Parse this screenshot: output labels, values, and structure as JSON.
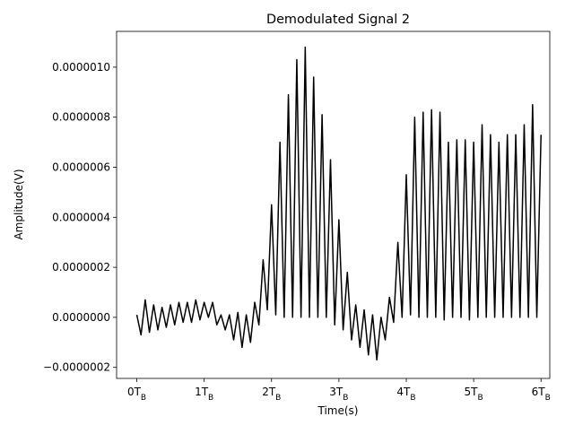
{
  "chart_data": {
    "type": "line",
    "title": "Demodulated Signal 2",
    "x_label": "Time(s)",
    "y_label": "Amplitude(V)",
    "xlim": [
      -0.3,
      6.13
    ],
    "ylim": [
      -2.44e-07,
      1.143e-06
    ],
    "xticks": [
      {
        "value": 0,
        "label": "0T_B"
      },
      {
        "value": 1,
        "label": "1T_B"
      },
      {
        "value": 2,
        "label": "2T_B"
      },
      {
        "value": 3,
        "label": "3T_B"
      },
      {
        "value": 4,
        "label": "4T_B"
      },
      {
        "value": 5,
        "label": "5T_B"
      },
      {
        "value": 6,
        "label": "6T_B"
      }
    ],
    "yticks": [
      {
        "value": -2e-07,
        "label": "−0.0000002"
      },
      {
        "value": 0,
        "label": "0.0000000"
      },
      {
        "value": 2e-07,
        "label": "0.0000002"
      },
      {
        "value": 4e-07,
        "label": "0.0000004"
      },
      {
        "value": 6e-07,
        "label": "0.0000006"
      },
      {
        "value": 8e-07,
        "label": "0.0000008"
      },
      {
        "value": 1e-06,
        "label": "0.0000010"
      }
    ],
    "grid": false,
    "x": [
      0,
      0.0625,
      0.125,
      0.1875,
      0.25,
      0.3125,
      0.375,
      0.4375,
      0.5,
      0.5625,
      0.625,
      0.6875,
      0.75,
      0.8125,
      0.875,
      0.9375,
      1,
      1.0625,
      1.125,
      1.1875,
      1.25,
      1.3125,
      1.375,
      1.4375,
      1.5,
      1.5625,
      1.625,
      1.6875,
      1.75,
      1.8125,
      1.875,
      1.9375,
      2,
      2.0625,
      2.125,
      2.1875,
      2.25,
      2.3125,
      2.375,
      2.4375,
      2.5,
      2.5625,
      2.625,
      2.6875,
      2.75,
      2.8125,
      2.875,
      2.9375,
      3,
      3.0625,
      3.125,
      3.1875,
      3.25,
      3.3125,
      3.375,
      3.4375,
      3.5,
      3.5625,
      3.625,
      3.6875,
      3.75,
      3.8125,
      3.875,
      3.9375,
      4,
      4.0625,
      4.125,
      4.1875,
      4.25,
      4.3125,
      4.375,
      4.4375,
      4.5,
      4.5625,
      4.625,
      4.6875,
      4.75,
      4.8125,
      4.875,
      4.9375,
      5,
      5.0625,
      5.125,
      5.1875,
      5.25,
      5.3125,
      5.375,
      5.4375,
      5.5,
      5.5625,
      5.625,
      5.6875,
      5.75,
      5.8125,
      5.875,
      5.9375,
      6
    ],
    "series": [
      {
        "color": "#000000",
        "values": [
          1e-08,
          -7e-08,
          7e-08,
          -6e-08,
          5e-08,
          -5e-08,
          4e-08,
          -4e-08,
          5e-08,
          -3e-08,
          6e-08,
          -2e-08,
          6e-08,
          -2e-08,
          7e-08,
          -1e-08,
          6e-08,
          0,
          6e-08,
          -3e-08,
          1e-08,
          -5e-08,
          1e-08,
          -9e-08,
          2e-08,
          -1.2e-07,
          1e-08,
          -1e-07,
          6e-08,
          -3e-08,
          2.3e-07,
          3e-08,
          4.5e-07,
          1e-08,
          7e-07,
          0,
          8.9e-07,
          0,
          1.03e-06,
          0,
          1.08e-06,
          0,
          9.6e-07,
          0,
          8.1e-07,
          0,
          6.3e-07,
          -3e-08,
          3.9e-07,
          -5e-08,
          1.8e-07,
          -9e-08,
          5e-08,
          -1.2e-07,
          3e-08,
          -1.5e-07,
          1e-08,
          -1.7e-07,
          0,
          -9e-08,
          8e-08,
          -2e-08,
          3e-07,
          0,
          5.7e-07,
          1e-08,
          8e-07,
          0,
          8.2e-07,
          0,
          8.3e-07,
          0,
          8.2e-07,
          -1e-08,
          7e-07,
          0,
          7.1e-07,
          0,
          7.1e-07,
          -1e-08,
          7e-07,
          0,
          7.7e-07,
          0,
          7.3e-07,
          0,
          7e-07,
          0,
          7.3e-07,
          0,
          7.3e-07,
          0,
          7.7e-07,
          0,
          8.5e-07,
          0,
          7.3e-07
        ]
      }
    ]
  }
}
